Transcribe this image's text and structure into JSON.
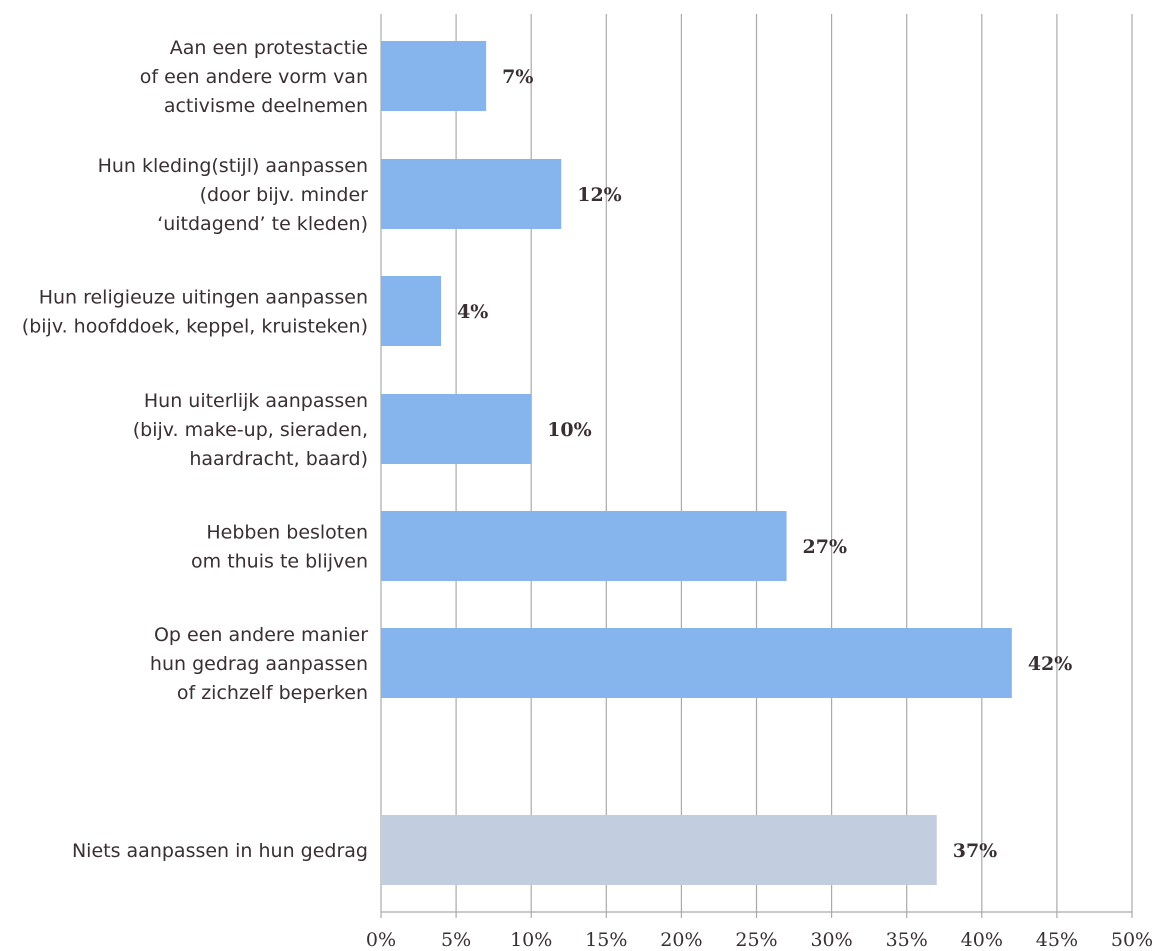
{
  "chart_data": {
    "type": "bar",
    "orientation": "horizontal",
    "title": "",
    "xlabel": "",
    "ylabel": "",
    "xlim": [
      0,
      50
    ],
    "grid": "vertical",
    "legend": "none",
    "x_ticks": [
      "0%",
      "5%",
      "10%",
      "15%",
      "20%",
      "25%",
      "30%",
      "35%",
      "40%",
      "45%",
      "50%"
    ],
    "categories": [
      {
        "lines": [
          "Aan een protestactie",
          "of een andere vorm van",
          "activisme deelnemen"
        ],
        "value": 7,
        "value_label": "7%",
        "color": "#86b4ec"
      },
      {
        "lines": [
          "Hun kleding(stijl) aanpassen",
          "(door bijv. minder",
          "‘uitdagend’ te kleden)"
        ],
        "value": 12,
        "value_label": "12%",
        "color": "#86b4ec"
      },
      {
        "lines": [
          "Hun religieuze uitingen aanpassen",
          "(bijv. hoofddoek, keppel, kruisteken)"
        ],
        "value": 4,
        "value_label": "4%",
        "color": "#86b4ec"
      },
      {
        "lines": [
          "Hun uiterlijk aanpassen",
          "(bijv. make-up, sieraden,",
          "haardracht, baard)"
        ],
        "value": 10,
        "value_label": "10%",
        "color": "#86b4ec"
      },
      {
        "lines": [
          "Hebben besloten",
          "om thuis te blijven"
        ],
        "value": 27,
        "value_label": "27%",
        "color": "#86b4ec"
      },
      {
        "lines": [
          "Op een andere manier",
          "hun gedrag aanpassen",
          "of zichzelf beperken"
        ],
        "value": 42,
        "value_label": "42%",
        "color": "#86b4ec"
      },
      {
        "lines": [
          "Niets aanpassen in hun gedrag"
        ],
        "value": 37,
        "value_label": "37%",
        "color": "#c3cde0"
      }
    ],
    "colors": {
      "bar": "#86b4ec",
      "bar_alt": "#c3cde0",
      "grid": "#aaaaaa",
      "text": "#3a2f33"
    }
  }
}
